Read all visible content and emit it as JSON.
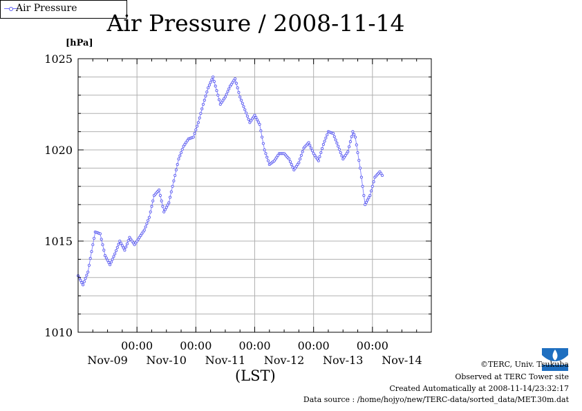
{
  "chart_data": {
    "type": "line",
    "title": "Air Pressure / 2008-11-14",
    "unit_label": "[hPa]",
    "xlabel": "(LST)",
    "ylim": [
      1010,
      1025
    ],
    "yticks": [
      1010,
      1015,
      1020,
      1025
    ],
    "y_minor_step": 1,
    "x_range_hours": [
      0,
      144
    ],
    "x_major_ticks_hours": [
      24,
      48,
      72,
      96,
      120
    ],
    "x_tick_labels": [
      "00:00",
      "00:00",
      "00:00",
      "00:00",
      "00:00"
    ],
    "date_labels": [
      "Nov-09",
      "Nov-10",
      "Nov-11",
      "Nov-12",
      "Nov-13",
      "Nov-14"
    ],
    "date_label_hours": [
      12,
      36,
      60,
      84,
      108,
      132
    ],
    "grid": true,
    "legend_position": "bottom-right, outside plot",
    "series": [
      {
        "name": "Air Pressure",
        "color": "#5b5bf0",
        "interval_hours": 0.5,
        "anchors": [
          [
            0,
            1013.1
          ],
          [
            2,
            1012.6
          ],
          [
            4,
            1013.3
          ],
          [
            6,
            1014.8
          ],
          [
            7,
            1015.5
          ],
          [
            9,
            1015.4
          ],
          [
            11,
            1014.2
          ],
          [
            13,
            1013.7
          ],
          [
            15,
            1014.3
          ],
          [
            17,
            1015.0
          ],
          [
            19,
            1014.5
          ],
          [
            21,
            1015.2
          ],
          [
            23,
            1014.8
          ],
          [
            25,
            1015.2
          ],
          [
            27,
            1015.6
          ],
          [
            29,
            1016.3
          ],
          [
            31,
            1017.5
          ],
          [
            33,
            1017.8
          ],
          [
            35,
            1016.6
          ],
          [
            37,
            1017.1
          ],
          [
            39,
            1018.3
          ],
          [
            41,
            1019.5
          ],
          [
            43,
            1020.2
          ],
          [
            45,
            1020.6
          ],
          [
            47,
            1020.7
          ],
          [
            49,
            1021.5
          ],
          [
            51,
            1022.5
          ],
          [
            53,
            1023.4
          ],
          [
            55,
            1024.0
          ],
          [
            56,
            1023.5
          ],
          [
            58,
            1022.5
          ],
          [
            60,
            1022.9
          ],
          [
            62,
            1023.5
          ],
          [
            64,
            1023.9
          ],
          [
            66,
            1022.9
          ],
          [
            68,
            1022.2
          ],
          [
            70,
            1021.5
          ],
          [
            72,
            1021.9
          ],
          [
            74,
            1021.4
          ],
          [
            76,
            1020.0
          ],
          [
            78,
            1019.2
          ],
          [
            80,
            1019.4
          ],
          [
            82,
            1019.8
          ],
          [
            84,
            1019.8
          ],
          [
            86,
            1019.5
          ],
          [
            88,
            1018.9
          ],
          [
            90,
            1019.3
          ],
          [
            92,
            1020.1
          ],
          [
            94,
            1020.4
          ],
          [
            96,
            1019.8
          ],
          [
            98,
            1019.4
          ],
          [
            100,
            1020.3
          ],
          [
            102,
            1021.0
          ],
          [
            104,
            1020.9
          ],
          [
            106,
            1020.2
          ],
          [
            108,
            1019.5
          ],
          [
            110,
            1019.9
          ],
          [
            112,
            1021.0
          ],
          [
            113,
            1020.7
          ],
          [
            115,
            1019.0
          ],
          [
            117,
            1017.0
          ],
          [
            119,
            1017.5
          ],
          [
            121,
            1018.5
          ],
          [
            123,
            1018.8
          ],
          [
            124,
            1018.6
          ]
        ]
      }
    ]
  },
  "credits": {
    "copyright": "©TERC, Univ. Tsukuba",
    "observed": "Observed at TERC Tower site",
    "created": "Created Automatically at 2008-11-14/23:32:17",
    "source": "Data source : /home/hojyo/new/TERC-data/sorted_data/MET.30m.dat",
    "logo_text": "TERC"
  }
}
